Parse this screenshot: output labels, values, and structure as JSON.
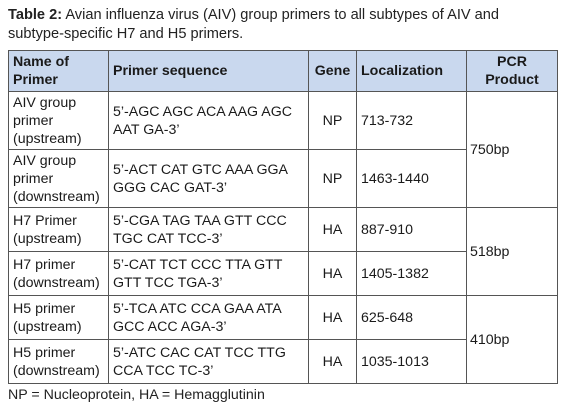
{
  "caption": {
    "label": "Table 2:",
    "text": " Avian influenza virus (AIV) group primers to all subtypes of AIV and subtype-specific H7 and H5 primers."
  },
  "table": {
    "headers": {
      "name": "Name of Primer",
      "sequence": "Primer sequence",
      "gene": "Gene",
      "localization": "Localization",
      "product": "PCR Product"
    },
    "rows": [
      {
        "name": "AIV group primer (upstream)",
        "sequence": "5’-AGC AGC ACA AAG AGC AAT GA-3’",
        "gene": "NP",
        "localization": "713-732"
      },
      {
        "name": "AIV group primer (downstream)",
        "sequence": "5’-ACT CAT GTC AAA GGA GGG CAC GAT-3’",
        "gene": "NP",
        "localization": "1463-1440"
      },
      {
        "name": "H7 Primer (upstream)",
        "sequence": "5’-CGA TAG TAA GTT CCC TGC CAT TCC-3’",
        "gene": "HA",
        "localization": "887-910"
      },
      {
        "name": "H7 primer (downstream)",
        "sequence": "5’-CAT TCT CCC TTA GTT GTT TCC TGA-3’",
        "gene": "HA",
        "localization": "1405-1382"
      },
      {
        "name": "H5 primer (upstream)",
        "sequence": "5’-TCA ATC CCA GAA ATA GCC ACC AGA-3’",
        "gene": "HA",
        "localization": "625-648"
      },
      {
        "name": "H5 primer (downstream)",
        "sequence": "5’-ATC CAC CAT TCC TTG CCA TCC TC-3’",
        "gene": "HA",
        "localization": "1035-1013"
      }
    ],
    "products": [
      "750bp",
      "518bp",
      "410bp"
    ]
  },
  "footnote": "NP = Nucleoprotein, HA = Hemagglutinin"
}
